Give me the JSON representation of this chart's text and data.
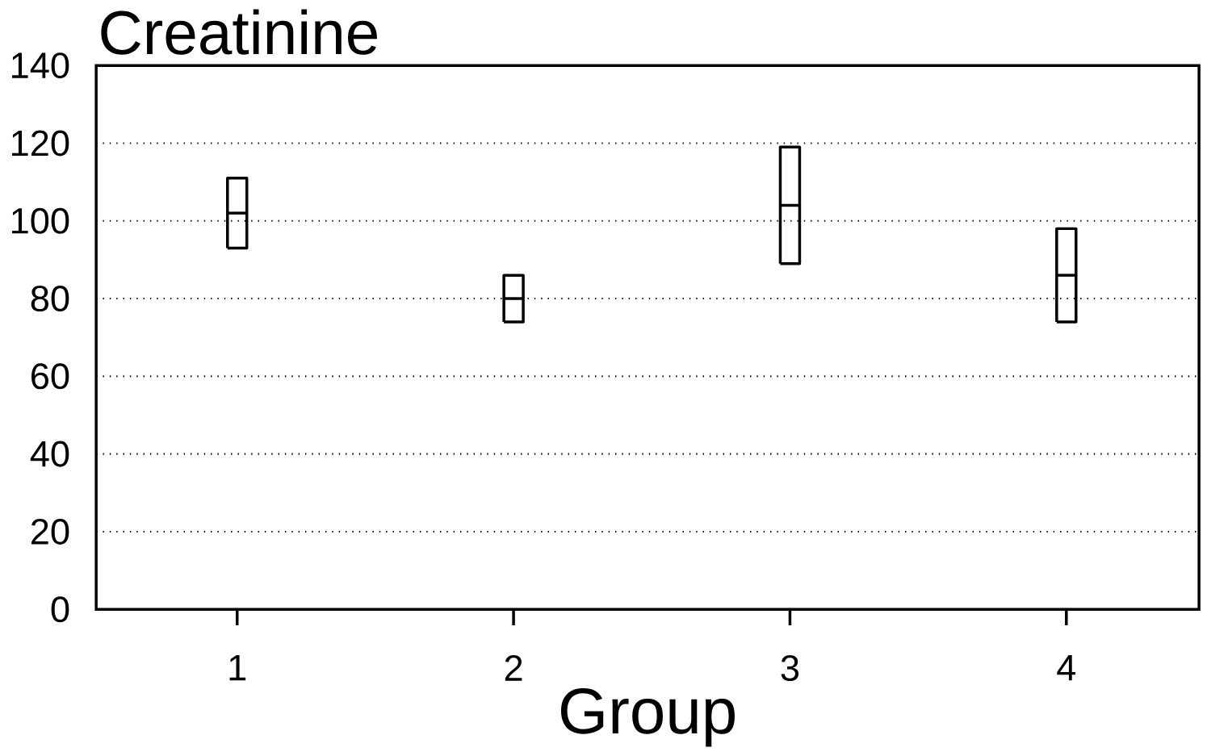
{
  "chart_data": {
    "type": "box",
    "title": "Creatinine",
    "xlabel": "Group",
    "categories": [
      "1",
      "2",
      "3",
      "4"
    ],
    "boxes": [
      {
        "low": 93,
        "q1": 93,
        "median": 102,
        "q3": 111,
        "high": 111
      },
      {
        "low": 74,
        "q1": 74,
        "median": 80,
        "q3": 86,
        "high": 86
      },
      {
        "low": 89,
        "q1": 89,
        "median": 104,
        "q3": 119,
        "high": 119
      },
      {
        "low": 74,
        "q1": 74,
        "median": 86,
        "q3": 98,
        "high": 98
      }
    ],
    "color": "#000000",
    "ylim": [
      0,
      140
    ],
    "yticks": [
      0,
      20,
      40,
      60,
      80,
      100,
      120,
      140
    ],
    "grid": "y"
  }
}
